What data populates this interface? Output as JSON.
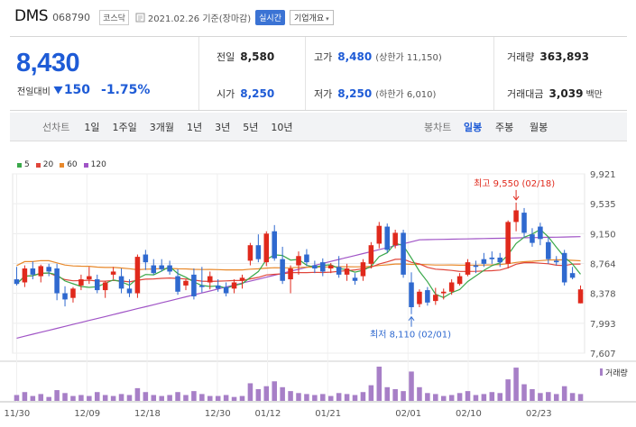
{
  "header": {
    "name": "DMS",
    "code": "068790",
    "market": "코스닥",
    "as_of": "2021.02.26 기준(장마감)",
    "realtime_label": "실시간",
    "company_button": "기업개요"
  },
  "quote": {
    "price": "8,430",
    "change_label": "전일대비",
    "change_amount": "150",
    "change_rate": "-1.75%"
  },
  "stats": {
    "prev": {
      "label": "전일",
      "value": "8,580"
    },
    "high": {
      "label": "고가",
      "value": "8,480",
      "sub": "(상한가 11,150)"
    },
    "volume": {
      "label": "거래량",
      "value": "363,893"
    },
    "open": {
      "label": "시가",
      "value": "8,250"
    },
    "low": {
      "label": "저가",
      "value": "8,250",
      "sub": "(하한가 6,010)"
    },
    "amount": {
      "label": "거래대금",
      "value": "3,039",
      "unit": "백만"
    }
  },
  "period": {
    "label": "선차트",
    "buttons": [
      "1일",
      "1주일",
      "3개월",
      "1년",
      "3년",
      "5년",
      "10년"
    ]
  },
  "candle": {
    "label": "봉차트",
    "buttons": [
      "일봉",
      "주봉",
      "월봉"
    ],
    "active": "일봉"
  },
  "colors": {
    "up": "#e0291c",
    "down": "#2f69cf",
    "ma5": "#3aa84a",
    "ma20": "#e0453a",
    "ma60": "#e8892b",
    "ma120": "#a054c6",
    "volume": "#a77fc7"
  },
  "chart_data": {
    "type": "candlestick",
    "legend": [
      {
        "name": "5",
        "color": "#3aa84a"
      },
      {
        "name": "20",
        "color": "#e0453a"
      },
      {
        "name": "60",
        "color": "#e8892b"
      },
      {
        "name": "120",
        "color": "#a054c6"
      }
    ],
    "y_ticks": [
      "9,921",
      "9,535",
      "9,150",
      "8,764",
      "8,378",
      "7,993",
      "7,607"
    ],
    "ylim": [
      7607,
      9921
    ],
    "x_ticks": [
      "11/30",
      "12/09",
      "12/18",
      "12/30",
      "01/12",
      "01/21",
      "02/01",
      "02/10",
      "02/23"
    ],
    "volume_label": "거래량",
    "annotations": {
      "high_label": "최고 9,550 (02/18)",
      "low_label": "최저 8,110 (02/01)"
    },
    "candles": [
      {
        "o": 8560,
        "h": 8720,
        "l": 8480,
        "c": 8500
      },
      {
        "o": 8520,
        "h": 8740,
        "l": 8460,
        "c": 8700
      },
      {
        "o": 8700,
        "h": 8790,
        "l": 8560,
        "c": 8620
      },
      {
        "o": 8600,
        "h": 8750,
        "l": 8520,
        "c": 8730
      },
      {
        "o": 8720,
        "h": 8760,
        "l": 8600,
        "c": 8660
      },
      {
        "o": 8700,
        "h": 8760,
        "l": 8290,
        "c": 8380
      },
      {
        "o": 8380,
        "h": 8470,
        "l": 8210,
        "c": 8300
      },
      {
        "o": 8320,
        "h": 8460,
        "l": 8260,
        "c": 8440
      },
      {
        "o": 8480,
        "h": 8620,
        "l": 8420,
        "c": 8560
      },
      {
        "o": 8560,
        "h": 8720,
        "l": 8500,
        "c": 8600
      },
      {
        "o": 8560,
        "h": 8620,
        "l": 8380,
        "c": 8420
      },
      {
        "o": 8420,
        "h": 8540,
        "l": 8320,
        "c": 8520
      },
      {
        "o": 8620,
        "h": 8720,
        "l": 8560,
        "c": 8660
      },
      {
        "o": 8600,
        "h": 8700,
        "l": 8380,
        "c": 8440
      },
      {
        "o": 8440,
        "h": 8560,
        "l": 8330,
        "c": 8380
      },
      {
        "o": 8380,
        "h": 8880,
        "l": 8320,
        "c": 8850
      },
      {
        "o": 8880,
        "h": 8940,
        "l": 8680,
        "c": 8780
      },
      {
        "o": 8740,
        "h": 8820,
        "l": 8620,
        "c": 8640
      },
      {
        "o": 8740,
        "h": 8820,
        "l": 8660,
        "c": 8690
      },
      {
        "o": 8740,
        "h": 8800,
        "l": 8620,
        "c": 8660
      },
      {
        "o": 8600,
        "h": 8690,
        "l": 8360,
        "c": 8400
      },
      {
        "o": 8480,
        "h": 8560,
        "l": 8420,
        "c": 8540
      },
      {
        "o": 8620,
        "h": 8700,
        "l": 8300,
        "c": 8340
      },
      {
        "o": 8480,
        "h": 8720,
        "l": 8390,
        "c": 8460
      },
      {
        "o": 8520,
        "h": 8660,
        "l": 8430,
        "c": 8600
      },
      {
        "o": 8480,
        "h": 8560,
        "l": 8400,
        "c": 8440
      },
      {
        "o": 8460,
        "h": 8520,
        "l": 8340,
        "c": 8380
      },
      {
        "o": 8440,
        "h": 8560,
        "l": 8380,
        "c": 8520
      },
      {
        "o": 8540,
        "h": 8620,
        "l": 8440,
        "c": 8580
      },
      {
        "o": 8800,
        "h": 9030,
        "l": 8740,
        "c": 9000
      },
      {
        "o": 9000,
        "h": 9140,
        "l": 8780,
        "c": 8820
      },
      {
        "o": 8780,
        "h": 9180,
        "l": 8730,
        "c": 9150
      },
      {
        "o": 9180,
        "h": 9260,
        "l": 8800,
        "c": 8830
      },
      {
        "o": 8820,
        "h": 8980,
        "l": 8500,
        "c": 8540
      },
      {
        "o": 8560,
        "h": 8740,
        "l": 8380,
        "c": 8700
      },
      {
        "o": 8740,
        "h": 8920,
        "l": 8620,
        "c": 8860
      },
      {
        "o": 8880,
        "h": 8950,
        "l": 8730,
        "c": 8780
      },
      {
        "o": 8740,
        "h": 8800,
        "l": 8640,
        "c": 8700
      },
      {
        "o": 8780,
        "h": 8830,
        "l": 8600,
        "c": 8660
      },
      {
        "o": 8700,
        "h": 8770,
        "l": 8640,
        "c": 8740
      },
      {
        "o": 8720,
        "h": 8860,
        "l": 8580,
        "c": 8620
      },
      {
        "o": 8620,
        "h": 8760,
        "l": 8540,
        "c": 8700
      },
      {
        "o": 8580,
        "h": 8640,
        "l": 8490,
        "c": 8540
      },
      {
        "o": 8600,
        "h": 8820,
        "l": 8540,
        "c": 8780
      },
      {
        "o": 8760,
        "h": 9040,
        "l": 8700,
        "c": 9000
      },
      {
        "o": 9020,
        "h": 9300,
        "l": 8960,
        "c": 9250
      },
      {
        "o": 9240,
        "h": 9280,
        "l": 8900,
        "c": 8940
      },
      {
        "o": 9000,
        "h": 9200,
        "l": 8960,
        "c": 9160
      },
      {
        "o": 9160,
        "h": 9200,
        "l": 8580,
        "c": 8620
      },
      {
        "o": 8520,
        "h": 8650,
        "l": 8110,
        "c": 8200
      },
      {
        "o": 8240,
        "h": 8430,
        "l": 8200,
        "c": 8400
      },
      {
        "o": 8420,
        "h": 8460,
        "l": 8220,
        "c": 8260
      },
      {
        "o": 8280,
        "h": 8450,
        "l": 8230,
        "c": 8360
      },
      {
        "o": 8380,
        "h": 8440,
        "l": 8300,
        "c": 8400
      },
      {
        "o": 8400,
        "h": 8560,
        "l": 8360,
        "c": 8520
      },
      {
        "o": 8500,
        "h": 8640,
        "l": 8480,
        "c": 8600
      },
      {
        "o": 8620,
        "h": 8820,
        "l": 8600,
        "c": 8780
      },
      {
        "o": 8740,
        "h": 8800,
        "l": 8640,
        "c": 8720
      },
      {
        "o": 8820,
        "h": 8900,
        "l": 8720,
        "c": 8760
      },
      {
        "o": 8840,
        "h": 8920,
        "l": 8760,
        "c": 8820
      },
      {
        "o": 8840,
        "h": 8900,
        "l": 8720,
        "c": 8780
      },
      {
        "o": 8760,
        "h": 9320,
        "l": 8700,
        "c": 9300
      },
      {
        "o": 9300,
        "h": 9550,
        "l": 9180,
        "c": 9450
      },
      {
        "o": 9420,
        "h": 9480,
        "l": 9100,
        "c": 9160
      },
      {
        "o": 9140,
        "h": 9220,
        "l": 8980,
        "c": 9030
      },
      {
        "o": 9240,
        "h": 9290,
        "l": 9000,
        "c": 9080
      },
      {
        "o": 9040,
        "h": 9100,
        "l": 8760,
        "c": 8820
      },
      {
        "o": 8800,
        "h": 8860,
        "l": 8740,
        "c": 8780
      },
      {
        "o": 8900,
        "h": 8940,
        "l": 8480,
        "c": 8520
      },
      {
        "o": 8640,
        "h": 8720,
        "l": 8560,
        "c": 8580
      },
      {
        "o": 8250,
        "h": 8480,
        "l": 8250,
        "c": 8430
      }
    ],
    "volumes": [
      6,
      9,
      5,
      7,
      4,
      11,
      8,
      5,
      6,
      5,
      9,
      6,
      5,
      7,
      6,
      13,
      9,
      6,
      5,
      6,
      9,
      6,
      10,
      7,
      5,
      5,
      6,
      4,
      5,
      18,
      12,
      15,
      20,
      14,
      10,
      8,
      7,
      6,
      7,
      5,
      8,
      7,
      6,
      9,
      16,
      35,
      14,
      12,
      10,
      30,
      14,
      8,
      7,
      5,
      6,
      8,
      10,
      6,
      7,
      9,
      8,
      22,
      34,
      17,
      12,
      8,
      9,
      7,
      15,
      8,
      7
    ]
  }
}
